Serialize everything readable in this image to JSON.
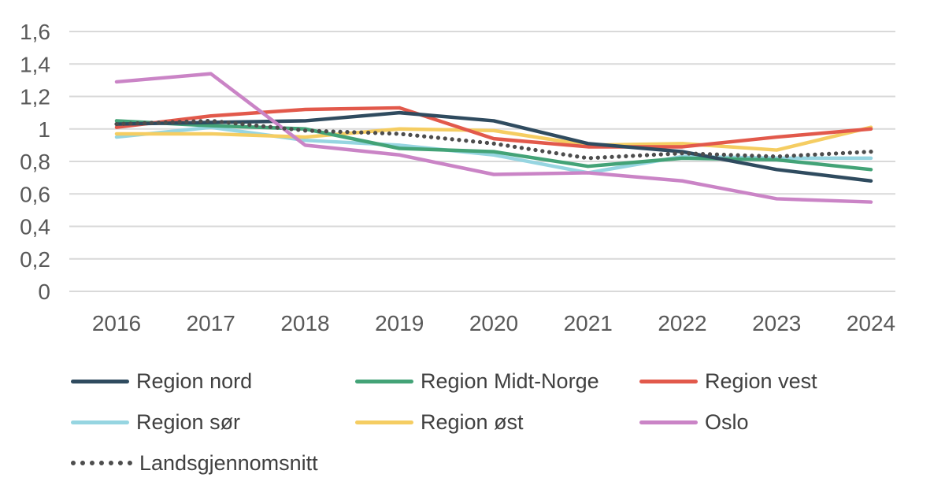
{
  "chart_data": {
    "type": "line",
    "x_categories": [
      "2016",
      "2017",
      "2018",
      "2019",
      "2020",
      "2021",
      "2022",
      "2023",
      "2024"
    ],
    "y_axis": {
      "min": 0,
      "max": 1.6,
      "step": 0.2,
      "tick_labels": [
        "0",
        "0,2",
        "0,4",
        "0,6",
        "0,8",
        "1",
        "1,2",
        "1,4",
        "1,6"
      ]
    },
    "grid": true,
    "legend_position": "bottom",
    "title": "",
    "xlabel": "",
    "ylabel": "",
    "colors": {
      "gridline": "#d9d9d9",
      "axis_text": "#595959",
      "legend_text": "#404040"
    },
    "series": [
      {
        "name": "Region nord",
        "color": "#2f4b5f",
        "style": "solid",
        "values": [
          1.03,
          1.04,
          1.05,
          1.1,
          1.05,
          0.91,
          0.86,
          0.75,
          0.68
        ]
      },
      {
        "name": "Region Midt-Norge",
        "color": "#43a377",
        "style": "solid",
        "values": [
          1.05,
          1.02,
          1.0,
          0.88,
          0.86,
          0.77,
          0.82,
          0.81,
          0.75
        ]
      },
      {
        "name": "Region vest",
        "color": "#e2594b",
        "style": "solid",
        "values": [
          1.01,
          1.08,
          1.12,
          1.13,
          0.94,
          0.89,
          0.89,
          0.95,
          1.0
        ]
      },
      {
        "name": "Region sør",
        "color": "#96d5e1",
        "style": "solid",
        "values": [
          0.95,
          1.01,
          0.93,
          0.9,
          0.84,
          0.73,
          0.83,
          0.82,
          0.82
        ]
      },
      {
        "name": "Region øst",
        "color": "#f5cd62",
        "style": "solid",
        "values": [
          0.97,
          0.97,
          0.95,
          1.0,
          0.99,
          0.9,
          0.91,
          0.87,
          1.01
        ]
      },
      {
        "name": "Oslo",
        "color": "#ca84c6",
        "style": "solid",
        "values": [
          1.29,
          1.34,
          0.9,
          0.84,
          0.72,
          0.73,
          0.68,
          0.57,
          0.55
        ]
      },
      {
        "name": "Landsgjennomsnitt",
        "color": "#4d4d4d",
        "style": "dotted",
        "values": [
          1.03,
          1.05,
          0.99,
          0.97,
          0.91,
          0.82,
          0.85,
          0.83,
          0.86
        ]
      }
    ]
  }
}
